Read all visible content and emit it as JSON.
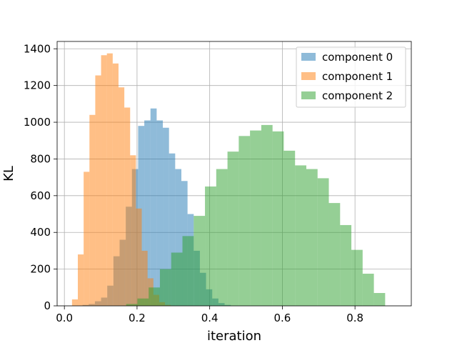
{
  "chart_data": {
    "type": "bar",
    "xlabel": "iteration",
    "ylabel": "KL",
    "xlim": [
      -0.02,
      0.955
    ],
    "ylim": [
      0,
      1440
    ],
    "xticks": [
      0.0,
      0.2,
      0.4,
      0.6,
      0.8
    ],
    "xtick_labels": [
      "0.0",
      "0.2",
      "0.4",
      "0.6",
      "0.8"
    ],
    "yticks": [
      0,
      200,
      400,
      600,
      800,
      1000,
      1200,
      1400
    ],
    "ytick_labels": [
      "0",
      "200",
      "400",
      "600",
      "800",
      "1000",
      "1200",
      "1400"
    ],
    "grid": true,
    "legend_position": "top-right",
    "series": [
      {
        "name": "component 0",
        "color": "#1f77b4",
        "opacity": 0.5,
        "bin_edges": [
          0.05,
          0.067,
          0.084,
          0.101,
          0.118,
          0.135,
          0.152,
          0.169,
          0.186,
          0.203,
          0.22,
          0.237,
          0.254,
          0.271,
          0.288,
          0.305,
          0.322,
          0.339,
          0.356,
          0.373,
          0.39,
          0.407,
          0.424,
          0.441,
          0.458
        ],
        "counts": [
          5,
          10,
          25,
          45,
          110,
          270,
          360,
          540,
          745,
          980,
          1010,
          1075,
          1010,
          970,
          830,
          745,
          680,
          500,
          300,
          180,
          90,
          40,
          15,
          5
        ]
      },
      {
        "name": "component 1",
        "color": "#ff7f0e",
        "opacity": 0.5,
        "bin_edges": [
          0.021,
          0.037,
          0.053,
          0.069,
          0.085,
          0.101,
          0.117,
          0.133,
          0.149,
          0.165,
          0.181,
          0.197,
          0.213,
          0.229,
          0.245,
          0.261,
          0.277,
          0.293
        ],
        "counts": [
          35,
          280,
          730,
          1040,
          1255,
          1365,
          1375,
          1320,
          1190,
          1080,
          820,
          530,
          300,
          150,
          60,
          20,
          5
        ]
      },
      {
        "name": "component 2",
        "color": "#2ca02c",
        "opacity": 0.5,
        "bin_edges": [
          0.17,
          0.201,
          0.232,
          0.263,
          0.294,
          0.325,
          0.356,
          0.387,
          0.418,
          0.449,
          0.48,
          0.511,
          0.542,
          0.573,
          0.604,
          0.635,
          0.666,
          0.697,
          0.728,
          0.759,
          0.79,
          0.821,
          0.852,
          0.883
        ],
        "counts": [
          10,
          40,
          100,
          200,
          290,
          380,
          490,
          650,
          745,
          840,
          925,
          955,
          985,
          950,
          845,
          765,
          745,
          695,
          560,
          440,
          305,
          175,
          70
        ]
      }
    ]
  }
}
